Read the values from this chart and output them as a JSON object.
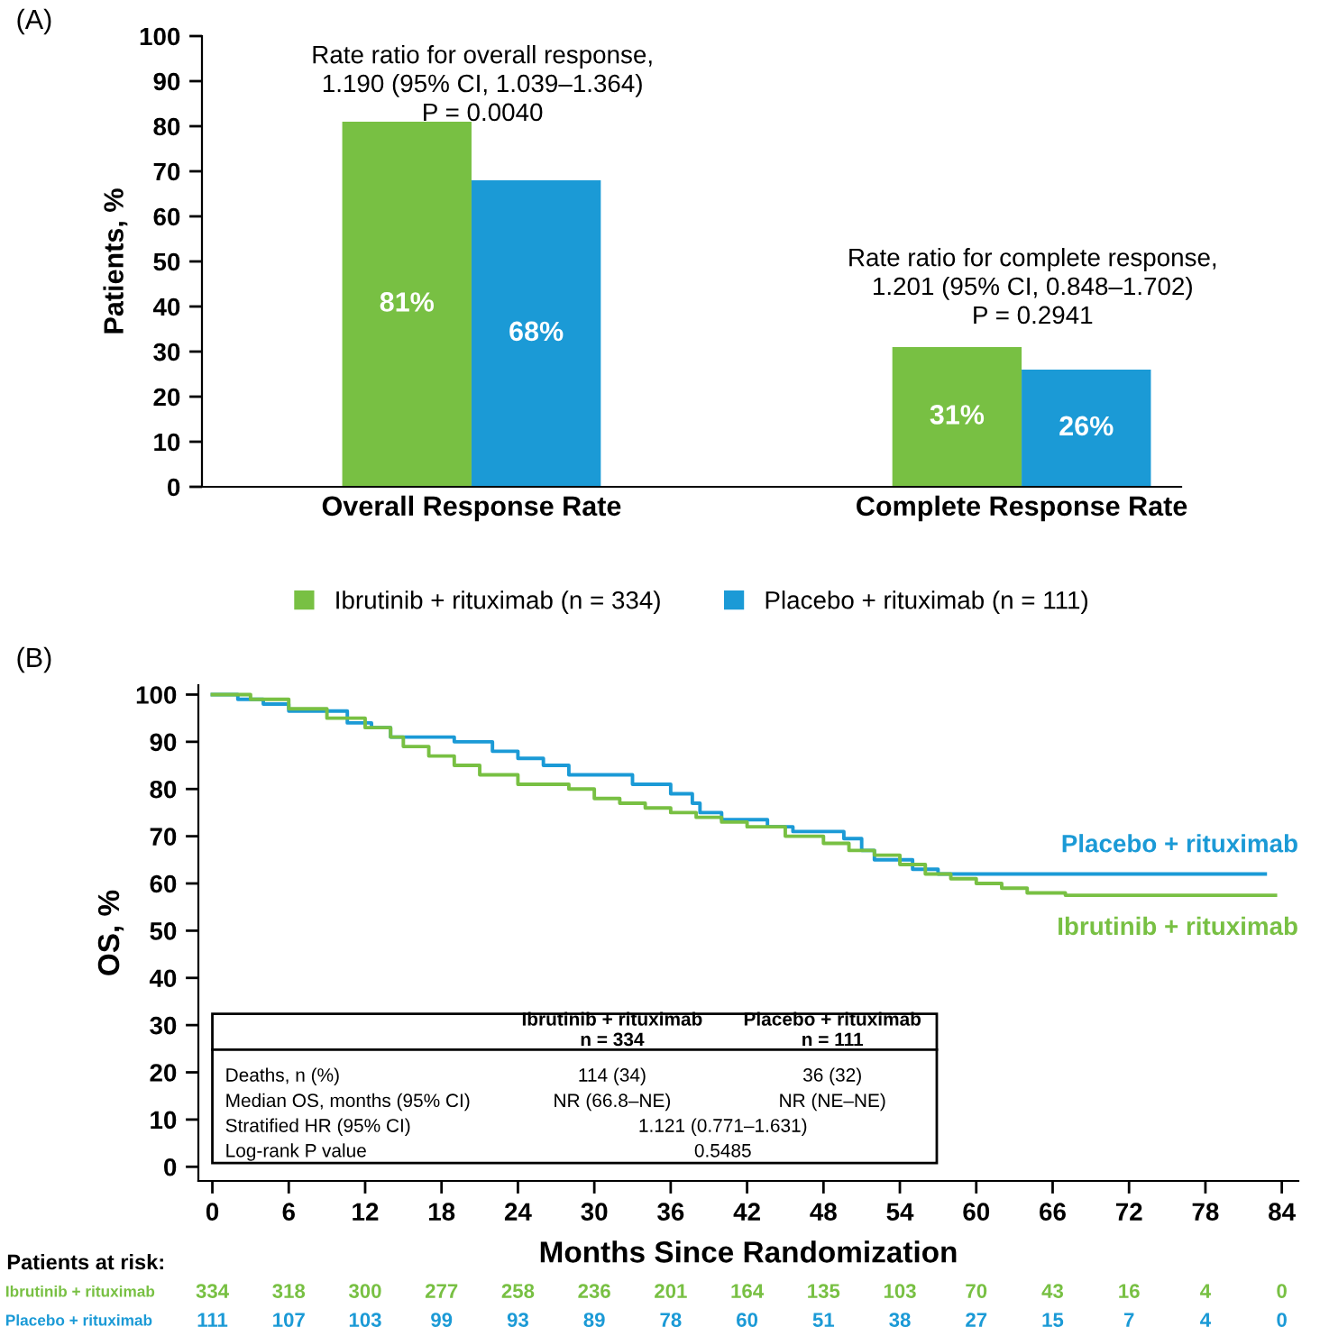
{
  "chart_data": [
    {
      "type": "bar",
      "title": "(A)",
      "ylabel": "Patients, %",
      "categories": [
        "Overall Response Rate",
        "Complete Response Rate"
      ],
      "series": [
        {
          "name": "Ibrutinib + rituximab (n = 334)",
          "color": "#78c043",
          "values": [
            81,
            31
          ],
          "value_labels": [
            "81%",
            "31%"
          ]
        },
        {
          "name": "Placebo + rituximab (n = 111)",
          "color": "#1b9ad6",
          "values": [
            68,
            26
          ],
          "value_labels": [
            "68%",
            "26%"
          ]
        }
      ],
      "ylim": [
        0,
        100
      ],
      "yticks": [
        0,
        10,
        20,
        30,
        40,
        50,
        60,
        70,
        80,
        90,
        100
      ],
      "legend": "bottom",
      "annotations": [
        "Rate ratio for overall response,\n1.190 (95% CI, 1.039–1.364)\nP = 0.0040",
        "Rate ratio for complete response,\n1.201 (95% CI, 0.848–1.702)\nP = 0.2941"
      ]
    },
    {
      "type": "step",
      "title": "(B)",
      "xlabel": "Months Since Randomization",
      "ylabel": "OS, %",
      "series": [
        {
          "name": "Placebo + rituximab",
          "color": "#1b9ad6",
          "x": [
            0,
            2,
            4,
            6,
            10.6,
            12.5,
            14,
            19,
            22,
            24,
            26,
            28,
            33,
            36,
            37.7,
            38.3,
            40,
            43.6,
            45.6,
            49.6,
            51,
            52,
            55,
            57,
            82.7
          ],
          "values": [
            100,
            99,
            98,
            96.5,
            94,
            93,
            91,
            90,
            88,
            86.5,
            85,
            83,
            81,
            79,
            77,
            75,
            73.5,
            72,
            71,
            69.5,
            67,
            65,
            63,
            62,
            62
          ]
        },
        {
          "name": "Ibrutinib + rituximab",
          "color": "#78c043",
          "x": [
            0,
            3,
            6,
            9,
            12,
            14,
            15,
            17,
            19,
            21,
            24,
            28,
            30,
            32,
            34,
            36,
            38,
            40,
            42,
            45,
            48,
            50,
            52,
            54,
            56,
            58,
            60,
            62,
            64,
            67,
            83.5
          ],
          "values": [
            100,
            99,
            97,
            95,
            93,
            91,
            89,
            87,
            85,
            83,
            81,
            80,
            78,
            77,
            76,
            75,
            74,
            73,
            72,
            70,
            68.5,
            67,
            66,
            64,
            62,
            61,
            60,
            59,
            58,
            57.5,
            57.5
          ]
        }
      ],
      "xlim": [
        -1.1,
        85.3
      ],
      "xticks": [
        0,
        6,
        12,
        18,
        24,
        30,
        36,
        42,
        48,
        54,
        60,
        66,
        72,
        78,
        84
      ],
      "ylim": [
        -3,
        102
      ],
      "yticks": [
        0,
        10,
        20,
        30,
        40,
        50,
        60,
        70,
        80,
        90,
        100
      ],
      "annotations": [
        "Patients at risk:",
        "Ibrutinib + rituximab",
        "334",
        "318",
        "300",
        "277",
        "258",
        "236",
        "201",
        "164",
        "135",
        "103",
        "70",
        "43",
        "16",
        "4",
        "0",
        "Placebo + rituximab",
        "111",
        "107",
        "103",
        "99",
        "93",
        "89",
        "78",
        "60",
        "51",
        "38",
        "27",
        "15",
        "7",
        "4",
        "0",
        "Ibrutinib + rituximab\nn = 334",
        "Placebo + rituximab\nn = 111",
        "Deaths, n (%)",
        "114 (34)",
        "36 (32)",
        "Median OS, months (95% CI)",
        "NR (66.8–NE)",
        "NR (NE–NE)",
        "Stratified HR (95% CI)",
        "1.121 (0.771–1.631)",
        "Log-rank P value",
        "0.5485"
      ]
    }
  ]
}
